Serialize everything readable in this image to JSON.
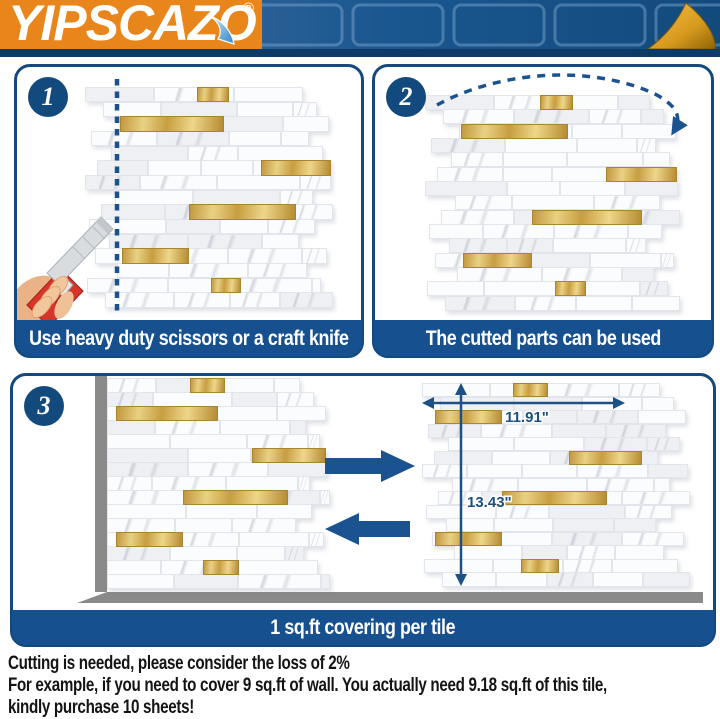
{
  "brand": {
    "logo_text": "YIPSCAZO",
    "registered_mark": "®"
  },
  "steps": [
    {
      "number": "1",
      "caption": "Use heavy duty scissors or a craft knife"
    },
    {
      "number": "2",
      "caption": "The cutted parts can be used"
    },
    {
      "number": "3",
      "caption": "1 sq.ft covering per tile",
      "width_label": "11.91\"",
      "height_label": "13.43\""
    }
  ],
  "footer": {
    "line1": "Cutting is needed, please consider the loss of 2%",
    "line2": "For example, if you need to cover 9 sq.ft of wall. You actually need 9.18 sq.ft of this tile,",
    "line3": "kindly purchase 10 sheets!"
  },
  "icons": {
    "page_curl_icon": "folded-gold-corner",
    "cut_line_icon": "vertical-dashed-line",
    "craft_knife_icon": "utility-knife-in-hand",
    "reuse_arrow_icon": "curved-dashed-arrow",
    "move_right_icon": "solid-right-arrow",
    "move_left_icon": "solid-left-arrow",
    "width_dim_icon": "horizontal-double-arrow",
    "height_dim_icon": "vertical-double-arrow"
  },
  "colors": {
    "brand_orange": "#E8861B",
    "navy_border": "#14497E",
    "caption_blue": "#17508F",
    "banner_blue": "#1A568F",
    "gold": "#C9A24A",
    "wall_gray": "#8A8A8A",
    "text_black": "#141414"
  }
}
